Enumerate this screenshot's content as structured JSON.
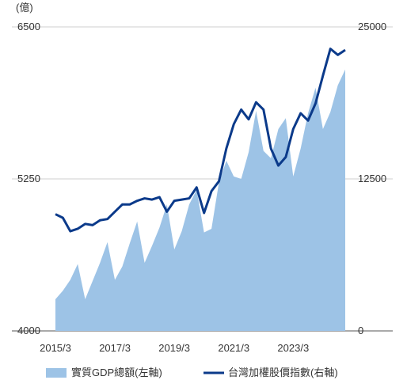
{
  "chart_data": {
    "type": "area+line",
    "left_unit": "(億)",
    "x_tick_labels": [
      "2015/3",
      "2017/3",
      "2019/3",
      "2021/3",
      "2023/3"
    ],
    "x_tick_indices": [
      0,
      8,
      16,
      24,
      32
    ],
    "left_axis": {
      "ticks": [
        "6500",
        "5250",
        "4000"
      ],
      "values": [
        6500,
        5250,
        4000
      ],
      "ylim": [
        4000,
        6500
      ]
    },
    "right_axis": {
      "ticks": [
        "25000",
        "12500",
        "0"
      ],
      "values": [
        25000,
        12500,
        0
      ],
      "ylim": [
        0,
        25000
      ]
    },
    "series": [
      {
        "name": "實質GDP總額(左軸)",
        "axis": "left",
        "kind": "area",
        "color": "#9dc3e6",
        "values": [
          4260,
          4330,
          4420,
          4550,
          4260,
          4410,
          4560,
          4730,
          4420,
          4530,
          4720,
          4900,
          4560,
          4700,
          4850,
          5040,
          4670,
          4820,
          5040,
          5160,
          4810,
          4840,
          5220,
          5400,
          5270,
          5250,
          5470,
          5810,
          5480,
          5420,
          5660,
          5750,
          5270,
          5500,
          5790,
          6000,
          5660,
          5800,
          6020,
          6150
        ]
      },
      {
        "name": "台灣加權股價指數(右軸)",
        "axis": "right",
        "kind": "line",
        "color": "#0b3a8a",
        "values": [
          9600,
          9300,
          8200,
          8400,
          8800,
          8700,
          9100,
          9200,
          9800,
          10400,
          10400,
          10700,
          10900,
          10800,
          11000,
          9800,
          10700,
          10800,
          10900,
          11800,
          9700,
          11500,
          12300,
          15000,
          17000,
          18200,
          17400,
          18800,
          18200,
          15000,
          13600,
          14300,
          16600,
          17900,
          17300,
          18700,
          21000,
          23200,
          22700,
          23100
        ]
      }
    ]
  }
}
